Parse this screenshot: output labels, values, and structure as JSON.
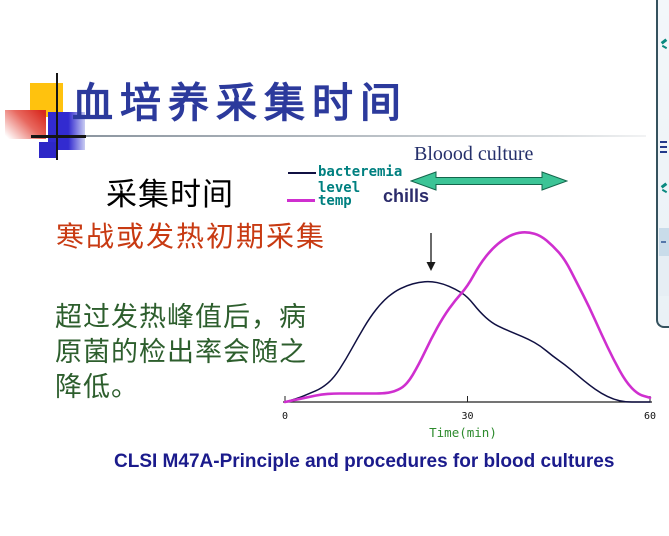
{
  "slide": {
    "title": "血培养采集时间",
    "collection_time_heading": "采集时间",
    "red_note": "寒战或发热初期采集",
    "green_note_lines": [
      "超过发热峰值后，病",
      "原菌的检出率会随之",
      "降低。"
    ],
    "citation": "CLSI M47A-Principle and procedures for blood cultures"
  },
  "figure": {
    "blood_culture_label": "Bloood culture",
    "chills_label": "chills",
    "legend": {
      "rows": [
        "bacteremia",
        "level",
        "temp"
      ]
    }
  },
  "colors": {
    "title": "#2c3a9c",
    "red_note": "#c83a12",
    "green_note": "#2d5e2d",
    "legend_text": "#008080",
    "bacteremia_curve": "#101042",
    "temp_curve": "#cf2fcf",
    "arrow_fill": "#3cc496",
    "chills_label": "#2c2c6b",
    "blood_culture_label": "#25306b",
    "xlabel": "#2e8b2e",
    "citation": "#1b1b8c",
    "deco_yellow": "#ffc20e",
    "deco_blue": "#322bd0",
    "deco_red": "#d92b20"
  },
  "chart_data": {
    "type": "line",
    "title": "",
    "xlabel": "Time(min)",
    "ylabel": "",
    "xlim": [
      0,
      60
    ],
    "ylim": [
      0,
      100
    ],
    "x_ticks": [
      0,
      30,
      60
    ],
    "grid": false,
    "legend_position": "outside-upper-left",
    "series": [
      {
        "name": "bacteremia level",
        "color": "#101042",
        "stroke_width": 1.5,
        "points": [
          [
            0,
            0
          ],
          [
            2,
            2
          ],
          [
            4,
            5
          ],
          [
            6,
            8
          ],
          [
            8,
            14
          ],
          [
            10,
            25
          ],
          [
            12,
            38
          ],
          [
            14,
            50
          ],
          [
            16,
            59
          ],
          [
            18,
            65
          ],
          [
            20,
            68.5
          ],
          [
            22,
            70.5
          ],
          [
            24,
            71
          ],
          [
            26,
            69.5
          ],
          [
            28,
            66.5
          ],
          [
            30,
            62
          ],
          [
            32,
            53
          ],
          [
            34,
            46.5
          ],
          [
            36,
            43
          ],
          [
            38,
            40
          ],
          [
            40,
            37
          ],
          [
            42,
            33
          ],
          [
            44,
            27
          ],
          [
            46,
            22
          ],
          [
            48,
            16
          ],
          [
            50,
            10
          ],
          [
            52,
            5
          ],
          [
            54,
            1.5
          ],
          [
            56,
            0
          ],
          [
            58,
            0
          ],
          [
            60,
            0
          ]
        ]
      },
      {
        "name": "temp",
        "color": "#cf2fcf",
        "stroke_width": 2.6,
        "points": [
          [
            0,
            0
          ],
          [
            2,
            1.5
          ],
          [
            4,
            3
          ],
          [
            6,
            4.5
          ],
          [
            8,
            5
          ],
          [
            10,
            5
          ],
          [
            12,
            5
          ],
          [
            14,
            5
          ],
          [
            16,
            5
          ],
          [
            18,
            6
          ],
          [
            20,
            10
          ],
          [
            22,
            22
          ],
          [
            24,
            37
          ],
          [
            26,
            50
          ],
          [
            28,
            60
          ],
          [
            30,
            68
          ],
          [
            32,
            81
          ],
          [
            34,
            90
          ],
          [
            36,
            96
          ],
          [
            38,
            99.5
          ],
          [
            40,
            100
          ],
          [
            42,
            98
          ],
          [
            44,
            92
          ],
          [
            46,
            84
          ],
          [
            48,
            70
          ],
          [
            50,
            56
          ],
          [
            52,
            40
          ],
          [
            54,
            25
          ],
          [
            56,
            12
          ],
          [
            58,
            4.5
          ],
          [
            60,
            2.5
          ]
        ]
      }
    ],
    "annotation_arrow": {
      "x_min": 24,
      "direction": "down",
      "points_to": "bacteremia level peak"
    }
  }
}
